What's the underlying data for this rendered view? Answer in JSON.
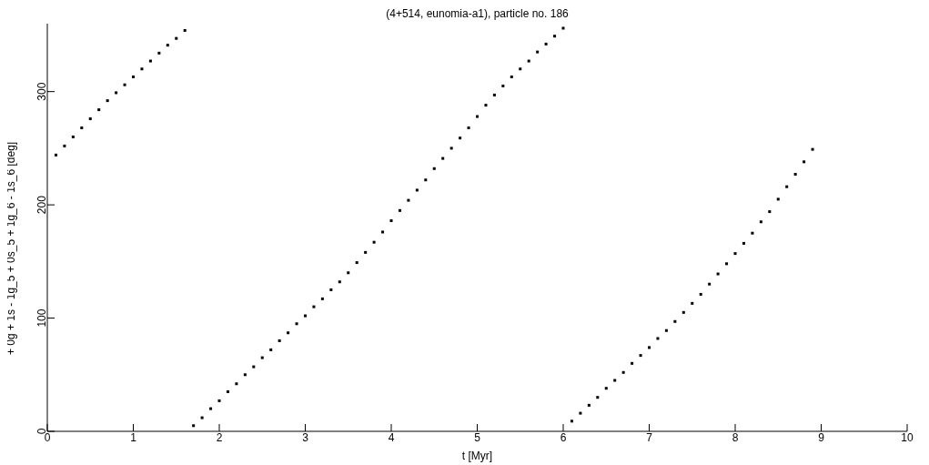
{
  "chart_data": {
    "type": "scatter",
    "title": "(4+514, eunomia-a1), particle no. 186",
    "xlabel": "t [Myr]",
    "ylabel": "+ 0g + 1s - 1g_5 + 0s_5 + 1g_6 - 1s_6 [deg]",
    "x": [
      0.1,
      0.2,
      0.3,
      0.4,
      0.5,
      0.6,
      0.7,
      0.8,
      0.9,
      1.0,
      1.1,
      1.2,
      1.3,
      1.4,
      1.5,
      1.6,
      1.7,
      1.8,
      1.9,
      2.0,
      2.1,
      2.2,
      2.3,
      2.4,
      2.5,
      2.6,
      2.7,
      2.8,
      2.9,
      3.0,
      3.1,
      3.2,
      3.3,
      3.4,
      3.5,
      3.6,
      3.7,
      3.8,
      3.9,
      4.0,
      4.1,
      4.2,
      4.3,
      4.4,
      4.5,
      4.6,
      4.7,
      4.8,
      4.9,
      5.0,
      5.1,
      5.2,
      5.3,
      5.4,
      5.5,
      5.6,
      5.7,
      5.8,
      5.9,
      6.0,
      6.1,
      6.2,
      6.3,
      6.4,
      6.5,
      6.6,
      6.7,
      6.8,
      6.9,
      7.0,
      7.1,
      7.2,
      7.3,
      7.4,
      7.5,
      7.6,
      7.7,
      7.8,
      7.9,
      8.0,
      8.1,
      8.2,
      8.3,
      8.4,
      8.5,
      8.6,
      8.7,
      8.8,
      8.9
    ],
    "values": [
      244,
      252,
      260,
      268,
      276,
      284,
      292,
      299,
      306,
      313,
      320,
      327,
      334,
      341,
      347,
      354,
      5,
      12,
      20,
      27,
      35,
      42,
      50,
      57,
      65,
      72,
      80,
      87,
      95,
      102,
      110,
      117,
      125,
      132,
      140,
      149,
      158,
      167,
      176,
      186,
      195,
      204,
      213,
      222,
      232,
      241,
      250,
      259,
      268,
      278,
      288,
      297,
      305,
      313,
      320,
      327,
      335,
      342,
      349,
      356,
      9,
      16,
      23,
      30,
      38,
      45,
      52,
      60,
      67,
      74,
      82,
      89,
      97,
      105,
      113,
      121,
      130,
      139,
      148,
      157,
      166,
      175,
      185,
      194,
      205,
      216,
      227,
      238,
      249
    ],
    "color": "#000000",
    "marker": "square",
    "xlim": [
      0,
      10
    ],
    "xticks": [
      0,
      1,
      2,
      3,
      4,
      5,
      6,
      7,
      8,
      9,
      10
    ],
    "ylim": [
      0,
      360
    ],
    "yticks": [
      0,
      100,
      200,
      300
    ]
  }
}
